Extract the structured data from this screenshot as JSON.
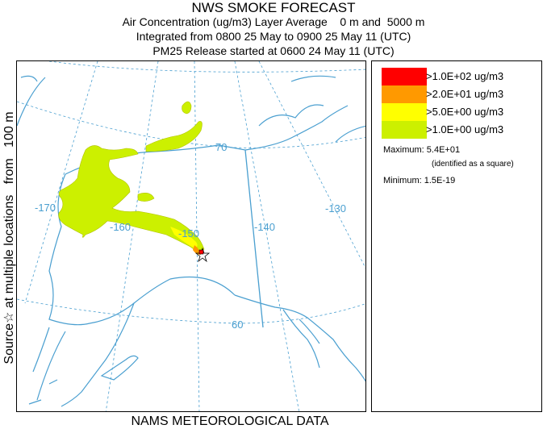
{
  "header": {
    "title": "NWS SMOKE FORECAST",
    "line1": "Air Concentration (ug/m3) Layer Average    0 m and  5000 m",
    "line2": "Integrated from 0800 25 May to 0900 25 May 11 (UTC)",
    "line3": "PM25 Release started at 0600 24 May 11 (UTC)"
  },
  "side_label": "Source☆ at multiple locations   from   100 m",
  "footer": "NAMS METEOROLOGICAL DATA",
  "map": {
    "region": "Alaska",
    "graticule_labels": {
      "lon_170": "-170",
      "lon_160": "-160",
      "lon_150": "-150",
      "lon_140": "-140",
      "lon_130": "-130",
      "lat_70": "70",
      "lat_60": "60"
    },
    "colors": {
      "coast": "#4a9fd0",
      "grid": "#4a9fd0",
      "plume_low": "#ccf000",
      "plume_mid": "#ffff00",
      "plume_high": "#ff9900",
      "plume_max": "#ff0000"
    }
  },
  "legend": {
    "items": [
      {
        "label": ">1.0E+02 ug/m3",
        "color": "#ff0000"
      },
      {
        "label": ">2.0E+01 ug/m3",
        "color": "#ff9900"
      },
      {
        "label": ">5.0E+00 ug/m3",
        "color": "#ffff00"
      },
      {
        "label": ">1.0E+00 ug/m3",
        "color": "#ccf000"
      }
    ],
    "maximum": "Maximum: 5.4E+01",
    "maximum_note": "(identified as a square)",
    "minimum": "Minimum: 1.5E-19"
  }
}
